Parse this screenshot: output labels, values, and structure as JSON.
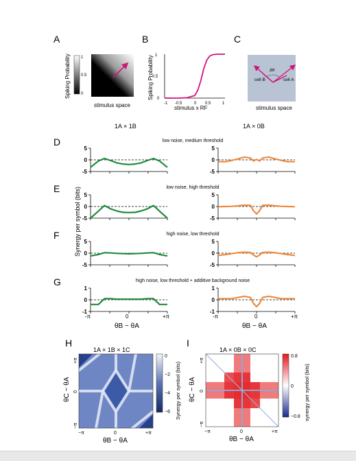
{
  "panels": {
    "A": {
      "letter": "A",
      "ylabel": "Spiking Probability",
      "xlabel": "stimulus space",
      "cbar_ticks": [
        "1",
        "0.5",
        "0"
      ]
    },
    "B": {
      "letter": "B",
      "ylabel": "Spiking Probability",
      "xlabel": "stimulus x RF",
      "xticks": [
        "-1",
        "-0.5",
        "0",
        "0.5",
        "1"
      ],
      "yticks": [
        "0",
        "0.5",
        "1"
      ]
    },
    "C": {
      "letter": "C",
      "xlabel": "stimulus space",
      "cell_a": "cell A",
      "cell_b": "cell B",
      "angle": "Δθ"
    }
  },
  "column_titles": {
    "left": "1A × 1B",
    "right": "1A × 0B"
  },
  "rows": [
    {
      "letter": "D",
      "subtitle": "low noise, medium threshold",
      "yticks": [
        "5",
        "0",
        "-5"
      ]
    },
    {
      "letter": "E",
      "subtitle": "low noise, high threshold",
      "yticks": [
        "5",
        "0",
        "-5"
      ]
    },
    {
      "letter": "F",
      "subtitle": "high noise, low threshold",
      "yticks": [
        "5",
        "0",
        "-5"
      ]
    },
    {
      "letter": "G",
      "subtitle": "high noise, low threshold + additive background noise",
      "yticks": [
        "1",
        "0",
        "-1"
      ]
    }
  ],
  "synergy_ylabel": "Synergy  per symbol (bits)",
  "xaxis": {
    "ticks": [
      "-π",
      "0",
      "+π"
    ],
    "label": "θB − θA"
  },
  "heatmaps": {
    "H": {
      "letter": "H",
      "title": "1A × 1B × 1C",
      "cbar_ticks": [
        "0",
        "−2",
        "−4",
        "−6"
      ],
      "cbar_label": "Synergy  per symbol (bits)",
      "ylabel": "θC − θA",
      "xlabel": "θB − θA",
      "xticks": [
        "−π",
        "0",
        "+π"
      ],
      "yticks": [
        "+π",
        "0",
        "−π"
      ],
      "low_color": "#17306b",
      "high_color": "#f4f6fb"
    },
    "I": {
      "letter": "I",
      "title": "1A × 0B × 0C",
      "cbar_ticks": [
        "0.8",
        "0",
        "−0.8"
      ],
      "cbar_label": "synergy  per symbol (bits)",
      "ylabel": "θC − θA",
      "xlabel": "θB − θA",
      "xticks": [
        "−π",
        "0",
        "+π"
      ],
      "yticks": [
        "+π",
        "0",
        "−π"
      ],
      "low_color": "#1a2a8c",
      "high_color": "#e3171d"
    }
  },
  "colors": {
    "green": "#1e8a3c",
    "orange": "#f0893c",
    "magenta": "#d1127a",
    "stim_bg": "#b8c4d4"
  },
  "chart_data": [
    {
      "type": "line",
      "title": "",
      "xlabel": "stimulus x RF",
      "ylabel": "Spiking Probability",
      "xlim": [
        -1,
        1
      ],
      "ylim": [
        0,
        1
      ],
      "series": [
        {
          "x": [
            -1,
            -0.5,
            -0.25,
            0,
            0.1,
            0.2,
            0.3,
            0.4,
            0.5,
            0.6,
            0.75,
            1
          ],
          "y": [
            0,
            0,
            0.01,
            0.06,
            0.18,
            0.4,
            0.68,
            0.87,
            0.96,
            0.99,
            1,
            1
          ]
        }
      ]
    },
    {
      "type": "line",
      "title": "1A × 1B",
      "xlim": [
        -3.14,
        3.14
      ],
      "ylim": [
        -5,
        5
      ],
      "baseline": 0,
      "x": [
        -3.14,
        -2.5,
        -2.0,
        -1.5,
        -1.0,
        -0.5,
        0,
        0.5,
        1.0,
        1.5,
        2.0,
        2.5,
        3.14
      ],
      "series": [
        {
          "y": [
            -3.2,
            -0.5,
            0.6,
            -0.3,
            -1.3,
            -1.8,
            -2.0,
            -1.8,
            -1.3,
            -0.3,
            0.6,
            -0.5,
            -3.2
          ]
        },
        {
          "y": [
            -5.0,
            -2.0,
            0.4,
            -1.0,
            -1.9,
            -2.5,
            -2.6,
            -2.5,
            -1.9,
            -1.0,
            0.4,
            -2.0,
            -5.0
          ]
        },
        {
          "y": [
            -1.2,
            -0.6,
            0.2,
            0.1,
            -0.1,
            -0.2,
            -0.3,
            -0.2,
            -0.1,
            0.1,
            0.2,
            -0.6,
            -1.2
          ]
        },
        {
          "y": [
            -0.4,
            -0.4,
            0.1,
            0.1,
            0.05,
            0.05,
            0.05,
            0.05,
            0.05,
            0.1,
            0.1,
            -0.4,
            -0.4
          ]
        }
      ]
    },
    {
      "type": "line",
      "title": "1A × 0B",
      "xlim": [
        -3.14,
        3.14
      ],
      "ylim": [
        -5,
        5
      ],
      "baseline": 0,
      "x": [
        -3.14,
        -2.5,
        -2.0,
        -1.5,
        -1.0,
        -0.5,
        -0.25,
        0,
        0.25,
        0.5,
        1.0,
        1.5,
        2.0,
        2.5,
        3.14
      ],
      "series": [
        {
          "y": [
            -0.8,
            -0.8,
            -0.2,
            0.4,
            1.2,
            0.8,
            -0.5,
            0.2,
            -0.5,
            0.8,
            1.2,
            0.4,
            -0.2,
            -0.8,
            -0.8
          ]
        },
        {
          "y": [
            -0.1,
            0,
            0.1,
            0.3,
            0.6,
            0.5,
            -1.8,
            -3.2,
            -1.8,
            0.5,
            0.6,
            0.3,
            0.1,
            0,
            -0.1
          ]
        },
        {
          "y": [
            -1.0,
            -0.6,
            -0.2,
            0.2,
            0.4,
            0.3,
            -0.8,
            -1.6,
            -0.8,
            0.3,
            0.4,
            0.2,
            -0.2,
            -0.6,
            -1.0
          ]
        },
        {
          "y": [
            0.1,
            0.1,
            0.1,
            0.2,
            0.3,
            0.2,
            -0.3,
            -0.6,
            -0.3,
            0.2,
            0.3,
            0.2,
            0.1,
            0.1,
            0.1
          ]
        }
      ]
    },
    {
      "type": "heatmap",
      "title": "1A × 1B × 1C",
      "xlabel": "θB − θA",
      "ylabel": "θC − θA",
      "zlim": [
        -6,
        0
      ]
    },
    {
      "type": "heatmap",
      "title": "1A × 0B × 0C",
      "xlabel": "θB − θA",
      "ylabel": "θC − θA",
      "zlim": [
        -0.8,
        0.8
      ]
    }
  ]
}
